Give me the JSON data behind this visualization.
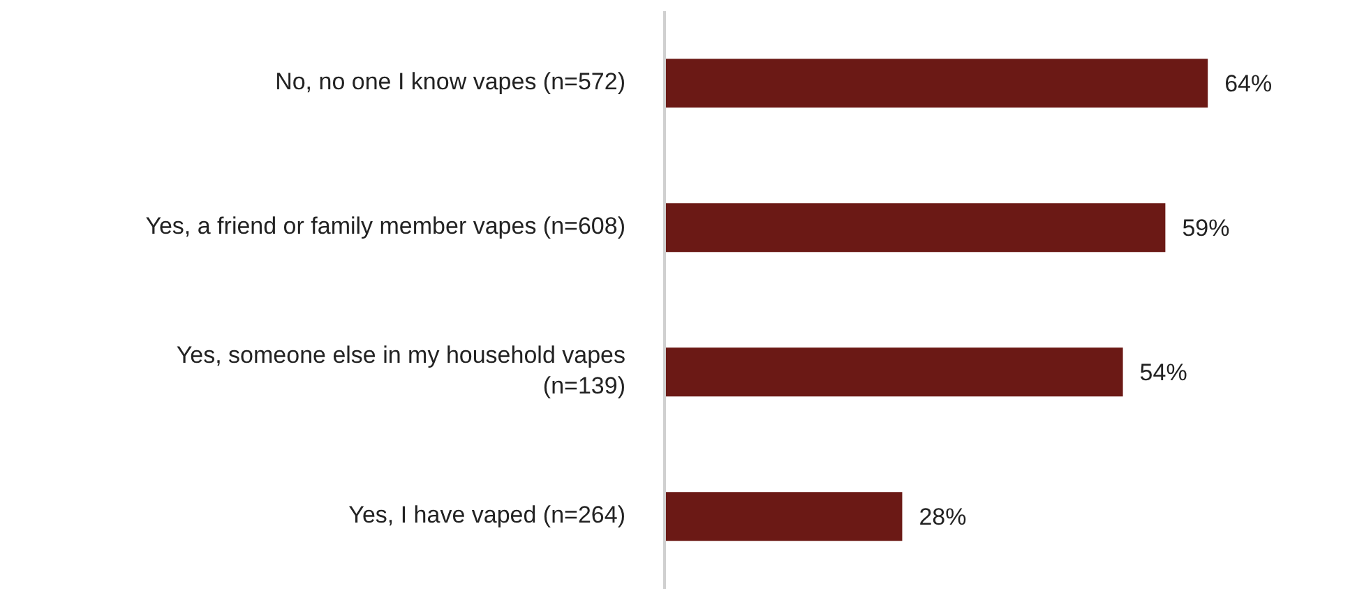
{
  "chart_data": {
    "type": "bar",
    "orientation": "horizontal",
    "categories": [
      "No, no one I know vapes (n=572)",
      "Yes, a friend or family member vapes (n=608)",
      "Yes, someone else in my household vapes (n=139)",
      "Yes, I have vaped (n=264)"
    ],
    "values": [
      64,
      59,
      54,
      28
    ],
    "color": "#6b1915",
    "value_labels": [
      "64%",
      "59%",
      "54%",
      "28%"
    ],
    "grid": false,
    "legend": false
  }
}
